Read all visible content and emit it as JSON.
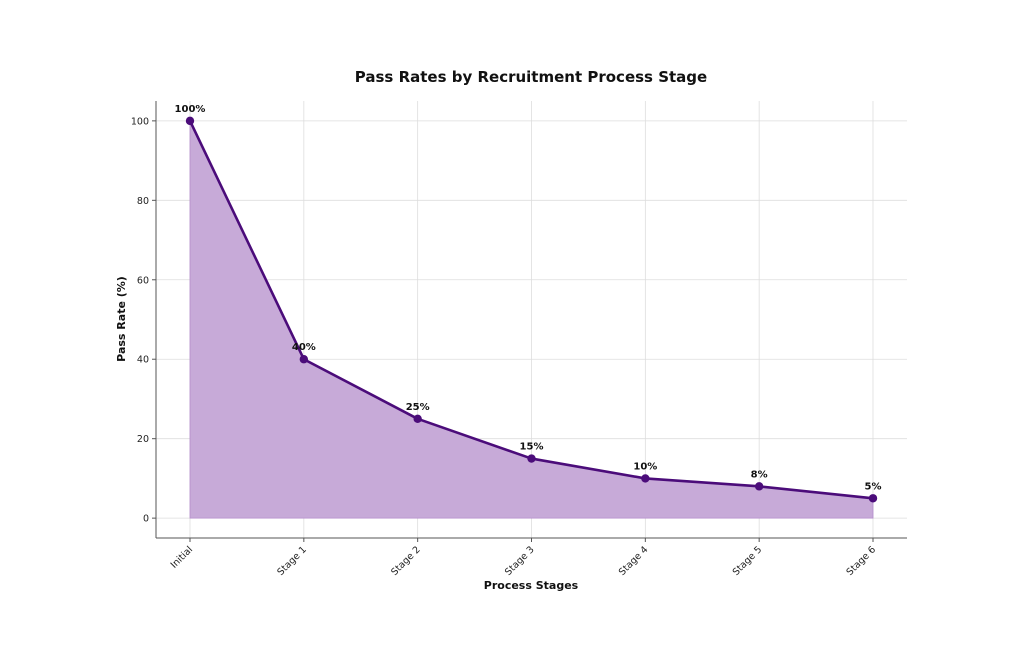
{
  "chart_data": {
    "type": "area",
    "title": "Pass Rates by Recruitment Process Stage",
    "xlabel": "Process Stages",
    "ylabel": "Pass Rate (%)",
    "categories": [
      "Initial",
      "Stage 1",
      "Stage 2",
      "Stage 3",
      "Stage 4",
      "Stage 5",
      "Stage 6"
    ],
    "series": [
      {
        "name": "Pass Rate",
        "values": [
          100,
          40,
          25,
          15,
          10,
          8,
          5
        ],
        "labels": [
          "100%",
          "40%",
          "25%",
          "15%",
          "10%",
          "8%",
          "5%"
        ]
      }
    ],
    "yticks": [
      0,
      20,
      40,
      60,
      80,
      100
    ],
    "ytick_labels": [
      "0",
      "20",
      "40",
      "60",
      "80",
      "100"
    ],
    "ylim": [
      -5,
      105
    ],
    "grid": true,
    "colors": {
      "line": "#4B0C7A",
      "marker": "#4B0C7A",
      "fill": "#C7AAD8",
      "fill_edge": "#B48CCB"
    }
  }
}
